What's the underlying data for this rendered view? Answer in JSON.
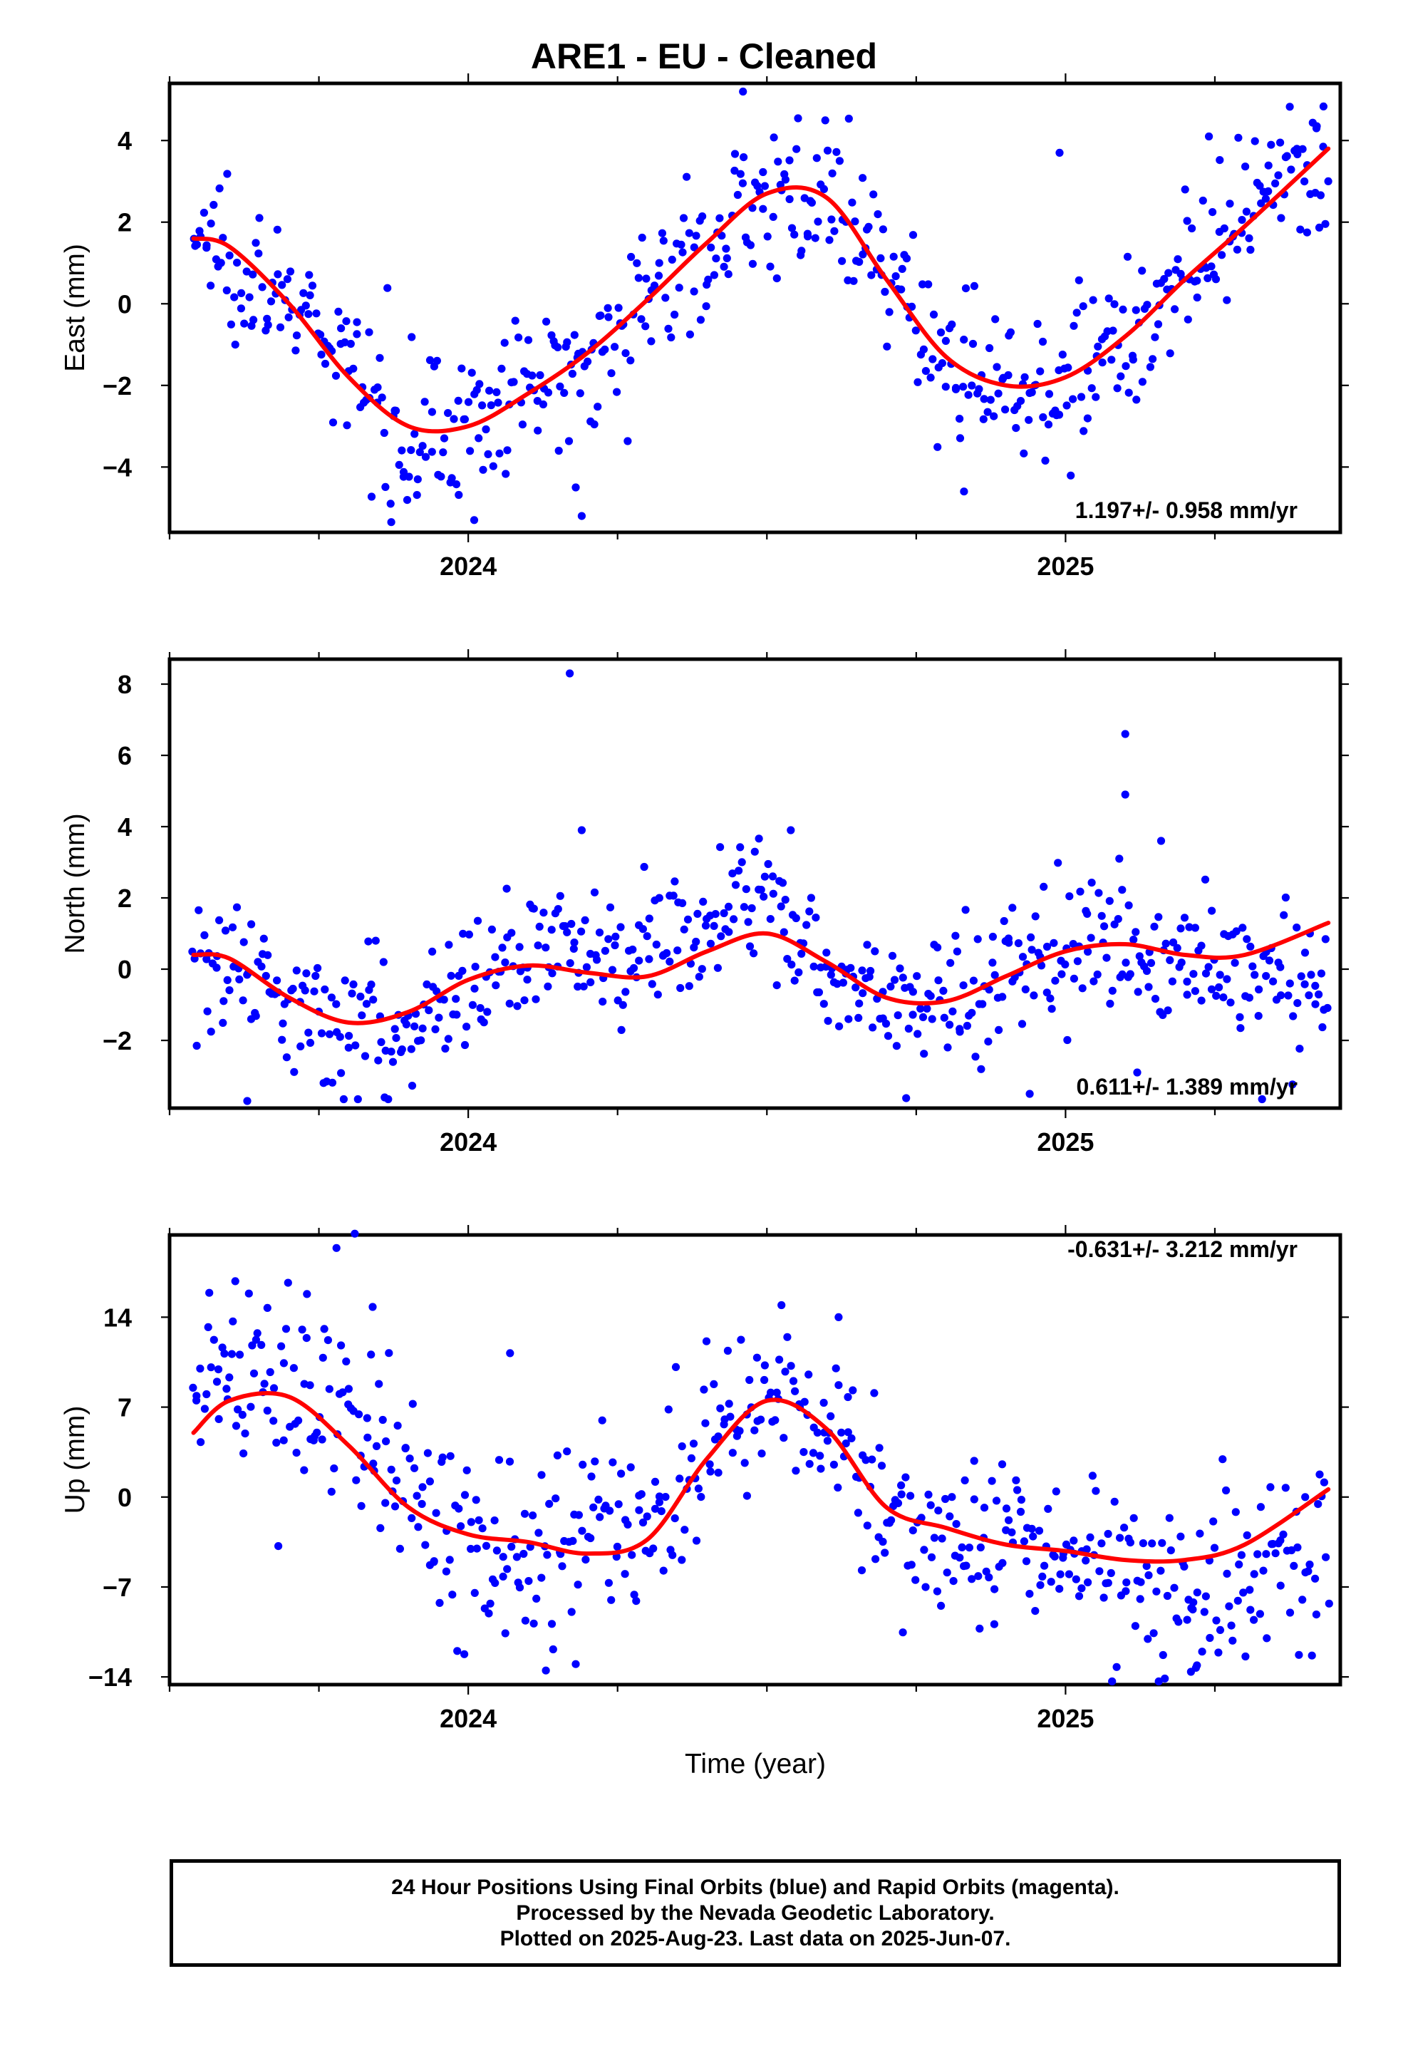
{
  "title": "ARE1  - EU - Cleaned",
  "x_axis_label": "Time (year)",
  "footer": {
    "line1": "24 Hour Positions Using Final Orbits (blue) and Rapid Orbits (magenta).",
    "line2": "Processed by the Nevada Geodetic Laboratory.",
    "line3": "Plotted on 2025-Aug-23. Last data on 2025-Jun-07."
  },
  "colors": {
    "points": "#0000ff",
    "fit": "#ff0000"
  },
  "chart_data": [
    {
      "type": "scatter",
      "ylabel": "East (mm)",
      "xlim": [
        2023.5,
        2025.46
      ],
      "ylim": [
        -5.6,
        5.4
      ],
      "yticks": [
        -4,
        -2,
        0,
        2,
        4
      ],
      "xticks": [
        2024,
        2025
      ],
      "rate_label": "1.197+/- 0.958 mm/yr",
      "rate_position": "bottom-right",
      "fit": {
        "x": [
          2023.54,
          2023.6,
          2023.7,
          2023.8,
          2023.9,
          2024.0,
          2024.1,
          2024.2,
          2024.3,
          2024.4,
          2024.5,
          2024.6,
          2024.7,
          2024.8,
          2024.9,
          2025.0,
          2025.1,
          2025.2,
          2025.3,
          2025.44
        ],
        "y": [
          1.6,
          1.4,
          0.0,
          -1.8,
          -3.0,
          -3.0,
          -2.2,
          -1.2,
          0.1,
          1.5,
          2.7,
          2.6,
          0.6,
          -1.3,
          -2.0,
          -1.8,
          -0.8,
          0.6,
          1.9,
          3.8
        ]
      },
      "point_trend": {
        "x": [
          2023.54,
          2023.6,
          2023.7,
          2023.8,
          2023.9,
          2024.0,
          2024.1,
          2024.2,
          2024.3,
          2024.4,
          2024.5,
          2024.6,
          2024.7,
          2024.8,
          2024.9,
          2025.0,
          2025.1,
          2025.2,
          2025.3,
          2025.44
        ],
        "y": [
          1.6,
          1.4,
          0.0,
          -1.8,
          -3.0,
          -3.0,
          -2.2,
          -1.2,
          0.1,
          1.5,
          2.7,
          2.6,
          0.6,
          -1.3,
          -2.0,
          -1.8,
          -0.8,
          0.6,
          1.9,
          3.8
        ]
      },
      "scatter_sd": 0.9,
      "outliers": [
        [
          2024.19,
          -5.2
        ],
        [
          2024.01,
          -5.3
        ],
        [
          2023.87,
          -4.9
        ],
        [
          2024.18,
          -4.5
        ],
        [
          2024.99,
          3.7
        ],
        [
          2025.24,
          4.1
        ],
        [
          2024.46,
          5.2
        ],
        [
          2025.42,
          4.3
        ],
        [
          2024.83,
          -4.6
        ]
      ]
    },
    {
      "type": "scatter",
      "ylabel": "North (mm)",
      "xlim": [
        2023.5,
        2025.46
      ],
      "ylim": [
        -3.9,
        8.7
      ],
      "yticks": [
        -2,
        0,
        2,
        4,
        6,
        8
      ],
      "xticks": [
        2024,
        2025
      ],
      "rate_label": "0.611+/- 1.389 mm/yr",
      "rate_position": "bottom-right",
      "fit": {
        "x": [
          2023.54,
          2023.6,
          2023.7,
          2023.8,
          2023.9,
          2024.0,
          2024.1,
          2024.2,
          2024.3,
          2024.4,
          2024.5,
          2024.6,
          2024.7,
          2024.8,
          2024.9,
          2025.0,
          2025.1,
          2025.2,
          2025.3,
          2025.44
        ],
        "y": [
          0.4,
          0.3,
          -0.8,
          -1.5,
          -1.2,
          -0.3,
          0.1,
          -0.1,
          -0.2,
          0.5,
          1.0,
          0.2,
          -0.8,
          -0.9,
          -0.2,
          0.5,
          0.7,
          0.4,
          0.4,
          1.3
        ]
      },
      "point_trend": {
        "x": [
          2023.54,
          2023.6,
          2023.7,
          2023.8,
          2023.9,
          2024.0,
          2024.1,
          2024.2,
          2024.3,
          2024.4,
          2024.5,
          2024.6,
          2024.7,
          2024.8,
          2024.9,
          2025.0,
          2025.1,
          2025.2,
          2025.3,
          2025.44
        ],
        "y": [
          0.4,
          0.3,
          -0.9,
          -1.5,
          -1.2,
          -0.2,
          0.6,
          0.4,
          0.6,
          1.4,
          2.0,
          0.1,
          -0.9,
          -0.9,
          -0.2,
          0.5,
          0.8,
          0.4,
          -0.3,
          -0.6
        ]
      },
      "scatter_sd": 0.95,
      "outliers": [
        [
          2024.17,
          8.3
        ],
        [
          2025.1,
          6.6
        ],
        [
          2025.1,
          4.9
        ],
        [
          2024.19,
          3.9
        ],
        [
          2025.16,
          3.6
        ],
        [
          2025.09,
          3.1
        ],
        [
          2024.94,
          -3.5
        ],
        [
          2024.54,
          3.9
        ],
        [
          2023.63,
          -3.7
        ],
        [
          2023.86,
          -3.6
        ],
        [
          2025.12,
          -2.9
        ]
      ]
    },
    {
      "type": "scatter",
      "ylabel": "Up (mm)",
      "xlim": [
        2023.5,
        2025.46
      ],
      "ylim": [
        -14.6,
        20.4
      ],
      "yticks": [
        -14,
        -7,
        0,
        7,
        14
      ],
      "xticks": [
        2024,
        2025
      ],
      "xlabel": "Time (year)",
      "rate_label": "-0.631+/- 3.212 mm/yr",
      "rate_position": "top-right",
      "fit": {
        "x": [
          2023.54,
          2023.6,
          2023.7,
          2023.8,
          2023.9,
          2024.0,
          2024.1,
          2024.2,
          2024.3,
          2024.4,
          2024.5,
          2024.6,
          2024.7,
          2024.8,
          2024.9,
          2025.0,
          2025.1,
          2025.2,
          2025.3,
          2025.44
        ],
        "y": [
          5.0,
          7.5,
          7.8,
          4.0,
          -0.8,
          -2.9,
          -3.5,
          -4.4,
          -3.3,
          3.0,
          7.5,
          5.3,
          -0.8,
          -2.4,
          -3.7,
          -4.2,
          -4.9,
          -4.9,
          -3.7,
          0.6
        ]
      },
      "point_trend": {
        "x": [
          2023.54,
          2023.6,
          2023.7,
          2023.8,
          2023.9,
          2024.0,
          2024.1,
          2024.2,
          2024.3,
          2024.4,
          2024.5,
          2024.6,
          2024.7,
          2024.8,
          2024.9,
          2025.0,
          2025.1,
          2025.2,
          2025.3,
          2025.44
        ],
        "y": [
          7.0,
          10.0,
          8.5,
          7.0,
          0.5,
          -3.0,
          -4.0,
          -3.5,
          -3.0,
          2.0,
          9.0,
          6.0,
          -1.0,
          -3.5,
          -3.5,
          -6.0,
          -7.0,
          -7.0,
          -6.0,
          -2.0
        ]
      },
      "scatter_sd": 3.5,
      "outliers": [
        [
          2023.81,
          20.5
        ],
        [
          2023.73,
          15.8
        ],
        [
          2023.84,
          14.8
        ],
        [
          2025.21,
          -13.6
        ],
        [
          2025.22,
          -13.1
        ],
        [
          2024.13,
          -13.5
        ],
        [
          2024.07,
          11.2
        ],
        [
          2024.18,
          -13.0
        ],
        [
          2023.61,
          16.8
        ],
        [
          2024.62,
          14.0
        ]
      ]
    }
  ]
}
